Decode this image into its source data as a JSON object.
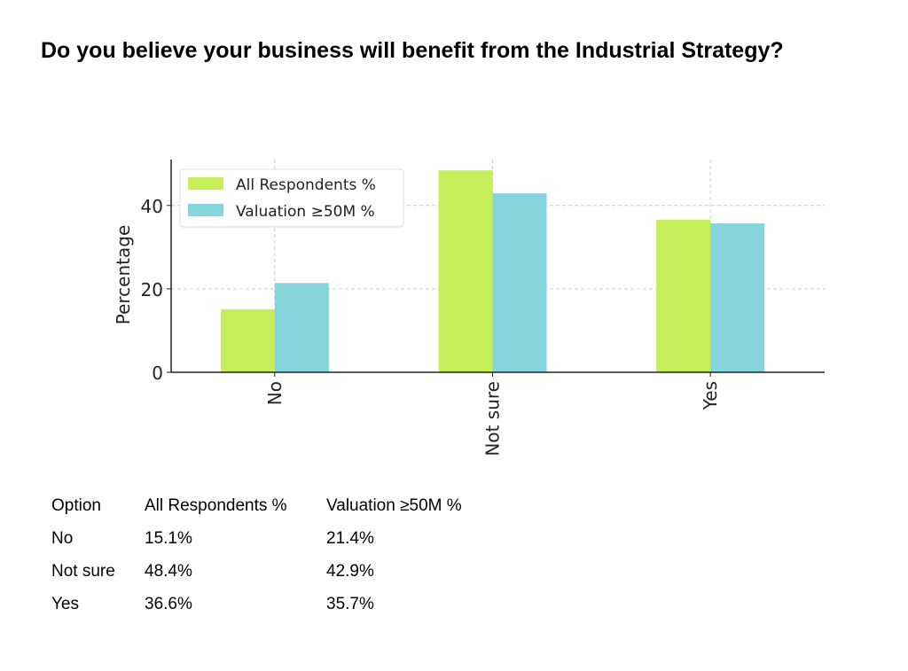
{
  "title": "Do you believe your business will benefit from the Industrial Strategy?",
  "chart_data": {
    "type": "bar",
    "categories": [
      "No",
      "Not sure",
      "Yes"
    ],
    "series": [
      {
        "name": "All Respondents %",
        "values": [
          15.1,
          48.4,
          36.6
        ],
        "color": "#c4ee5a"
      },
      {
        "name": "Valuation ≥50M %",
        "values": [
          21.4,
          42.9,
          35.7
        ],
        "color": "#87d5dc"
      }
    ],
    "xlabel": "",
    "ylabel": "Percentage",
    "ylim": [
      0,
      51
    ],
    "yticks": [
      0,
      20,
      40
    ],
    "grid": true,
    "legend": "top-left"
  },
  "table": {
    "headers": [
      "Option",
      "All Respondents %",
      "Valuation ≥50M %"
    ],
    "rows": [
      [
        "No",
        "15.1%",
        "21.4%"
      ],
      [
        "Not sure",
        "48.4%",
        "42.9%"
      ],
      [
        "Yes",
        "36.6%",
        "35.7%"
      ]
    ]
  }
}
